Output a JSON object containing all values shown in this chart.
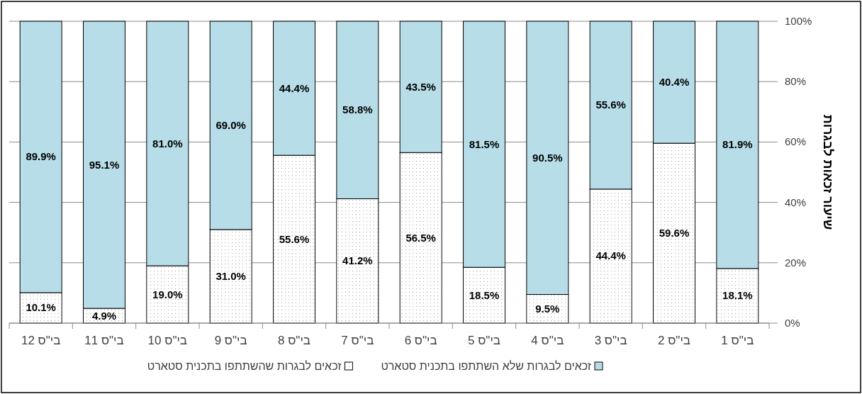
{
  "chart_data": {
    "type": "bar",
    "stacked": true,
    "ylabel": "שיעור זכאות לבגרות",
    "categories": [
      "בי\"ס 12",
      "בי\"ס 11",
      "בי\"ס 10",
      "בי\"ס 9",
      "בי\"ס 8",
      "בי\"ס 7",
      "בי\"ס 6",
      "בי\"ס 5",
      "בי\"ס 4",
      "בי\"ס 3",
      "בי\"ס 2",
      "בי\"ס 1"
    ],
    "series": [
      {
        "name": "זכאים לבגרות שהשתתפו בתכנית סטארט",
        "color": "#ffffff",
        "values": [
          10.1,
          4.9,
          19.0,
          31.0,
          55.6,
          41.2,
          56.5,
          18.5,
          9.5,
          44.4,
          59.6,
          18.1
        ],
        "value_labels": [
          "10.1%",
          "4.9%",
          "19.0%",
          "31.0%",
          "55.6%",
          "41.2%",
          "56.5%",
          "18.5%",
          "9.5%",
          "44.4%",
          "59.6%",
          "18.1%"
        ]
      },
      {
        "name": "זכאים לבגרות שלא השתתפו בתכנית סטארט",
        "color": "#b7dde8",
        "values": [
          89.9,
          95.1,
          81.0,
          69.0,
          44.4,
          58.8,
          43.5,
          81.5,
          90.5,
          55.6,
          40.4,
          81.9
        ],
        "value_labels": [
          "89.9%",
          "95.1%",
          "81.0%",
          "69.0%",
          "44.4%",
          "58.8%",
          "43.5%",
          "81.5%",
          "90.5%",
          "55.6%",
          "40.4%",
          "81.9%"
        ]
      }
    ],
    "ylim": [
      0,
      100
    ],
    "yticks": [
      {
        "value": 0,
        "label": "0%"
      },
      {
        "value": 20,
        "label": "20%"
      },
      {
        "value": 40,
        "label": "40%"
      },
      {
        "value": 60,
        "label": "60%"
      },
      {
        "value": 80,
        "label": "80%"
      },
      {
        "value": 100,
        "label": "100%"
      }
    ],
    "grid": "y",
    "legend": "bottom"
  }
}
